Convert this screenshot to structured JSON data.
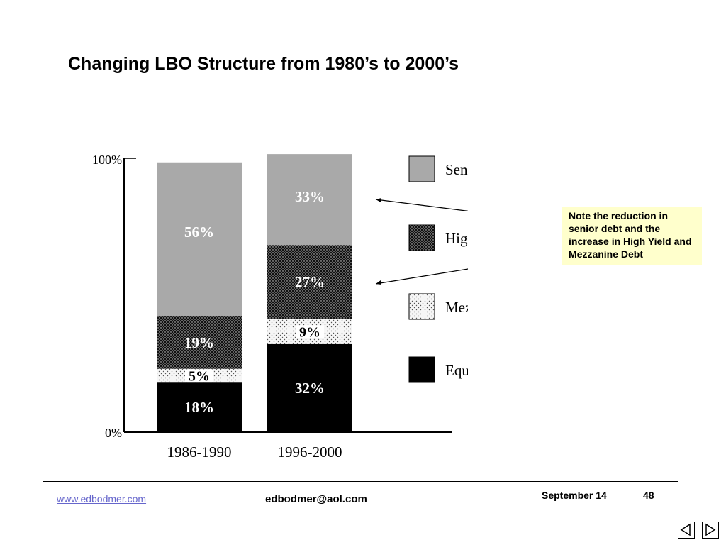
{
  "slide": {
    "title": "Changing LBO Structure from 1980’s to 2000’s",
    "callout": "Note the reduction in senior debt and the increase in High Yield and Mezzanine Debt"
  },
  "footer": {
    "link": "www.edbodmer.com",
    "email": "edbodmer@aol.com",
    "date": "September 14",
    "page": "48"
  },
  "colors": {
    "senior_debt": "#a9a9a9",
    "high_yield": "#1a1a1a",
    "mezzanine": "#f4f4f4",
    "equity": "#000000",
    "callout_bg": "#ffffcc",
    "link": "#6666cc"
  },
  "chart_data": {
    "type": "bar",
    "stacked": true,
    "categories": [
      "1986-1990",
      "1996-2000"
    ],
    "series": [
      {
        "name": "Equity",
        "values": [
          18,
          32
        ],
        "labels": [
          "18%",
          "32%"
        ],
        "pattern": "solid-black"
      },
      {
        "name": "Mezzanine",
        "values": [
          5,
          9
        ],
        "labels": [
          "5%",
          "9%"
        ],
        "pattern": "light-dots"
      },
      {
        "name": "High Yield",
        "values": [
          19,
          27
        ],
        "labels": [
          "19%",
          "27%"
        ],
        "pattern": "dense-dots"
      },
      {
        "name": "Senior Debt",
        "values": [
          56,
          33
        ],
        "labels": [
          "56%",
          "33%"
        ],
        "pattern": "gray"
      }
    ],
    "legend_order": [
      "Senior Debt",
      "High Yield",
      "Mezzanine",
      "Equity"
    ],
    "legend_position": "right",
    "ylim": [
      0,
      100
    ],
    "ytick_labels": [
      "0%",
      "100%"
    ]
  }
}
